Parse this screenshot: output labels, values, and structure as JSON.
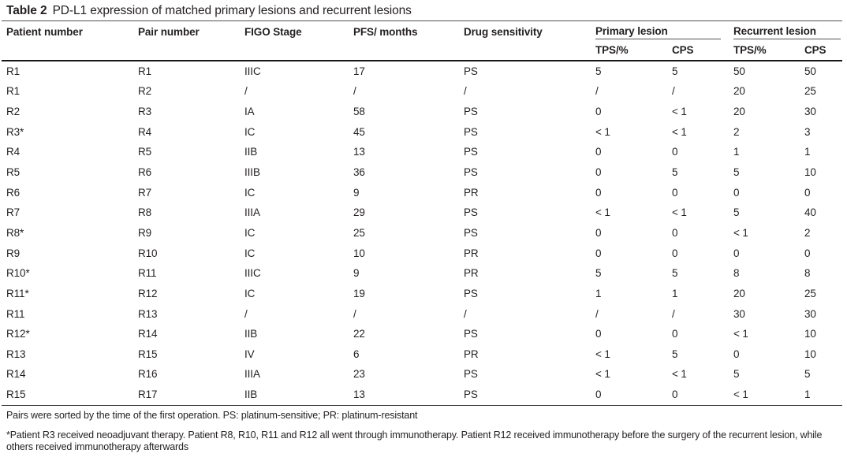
{
  "table": {
    "title_label": "Table 2",
    "title_text": "PD-L1 expression of matched primary lesions and recurrent lesions",
    "columns": [
      "Patient number",
      "Pair number",
      "FIGO Stage",
      "PFS/ months",
      "Drug sensitivity"
    ],
    "groups": [
      {
        "label": "Primary lesion",
        "sub": [
          "TPS/%",
          "CPS"
        ]
      },
      {
        "label": "Recurrent lesion",
        "sub": [
          "TPS/%",
          "CPS"
        ]
      }
    ],
    "rows": [
      [
        "R1",
        "R1",
        "IIIC",
        "17",
        "PS",
        "5",
        "5",
        "50",
        "50"
      ],
      [
        "R1",
        "R2",
        "/",
        "/",
        "/",
        "/",
        "/",
        "20",
        "25"
      ],
      [
        "R2",
        "R3",
        "IA",
        "58",
        "PS",
        "0",
        "< 1",
        "20",
        "30"
      ],
      [
        "R3*",
        "R4",
        "IC",
        "45",
        "PS",
        "< 1",
        "< 1",
        "2",
        "3"
      ],
      [
        "R4",
        "R5",
        "IIB",
        "13",
        "PS",
        "0",
        "0",
        "1",
        "1"
      ],
      [
        "R5",
        "R6",
        "IIIB",
        "36",
        "PS",
        "0",
        "5",
        "5",
        "10"
      ],
      [
        "R6",
        "R7",
        "IC",
        "9",
        "PR",
        "0",
        "0",
        "0",
        "0"
      ],
      [
        "R7",
        "R8",
        "IIIA",
        "29",
        "PS",
        "< 1",
        "< 1",
        "5",
        "40"
      ],
      [
        "R8*",
        "R9",
        "IC",
        "25",
        "PS",
        "0",
        "0",
        "< 1",
        "2"
      ],
      [
        "R9",
        "R10",
        "IC",
        "10",
        "PR",
        "0",
        "0",
        "0",
        "0"
      ],
      [
        "R10*",
        "R11",
        "IIIC",
        "9",
        "PR",
        "5",
        "5",
        "8",
        "8"
      ],
      [
        "R11*",
        "R12",
        "IC",
        "19",
        "PS",
        "1",
        "1",
        "20",
        "25"
      ],
      [
        "R11",
        "R13",
        "/",
        "/",
        "/",
        "/",
        "/",
        "30",
        "30"
      ],
      [
        "R12*",
        "R14",
        "IIB",
        "22",
        "PS",
        "0",
        "0",
        "< 1",
        "10"
      ],
      [
        "R13",
        "R15",
        "IV",
        "6",
        "PR",
        "< 1",
        "5",
        "0",
        "10"
      ],
      [
        "R14",
        "R16",
        "IIIA",
        "23",
        "PS",
        "< 1",
        "< 1",
        "5",
        "5"
      ],
      [
        "R15",
        "R17",
        "IIB",
        "13",
        "PS",
        "0",
        "0",
        "< 1",
        "1"
      ]
    ],
    "footnotes": [
      "Pairs were sorted by the time of the first operation. PS: platinum-sensitive; PR: platinum-resistant",
      "*Patient R3 received neoadjuvant therapy. Patient R8, R10, R11 and R12 all went through immunotherapy. Patient R12 received immunotherapy before the surgery of the recurrent lesion, while others received immunotherapy afterwards"
    ]
  },
  "colors": {
    "text": "#231f20",
    "rule_thin": "#525252",
    "rule_thick": "#161616"
  }
}
